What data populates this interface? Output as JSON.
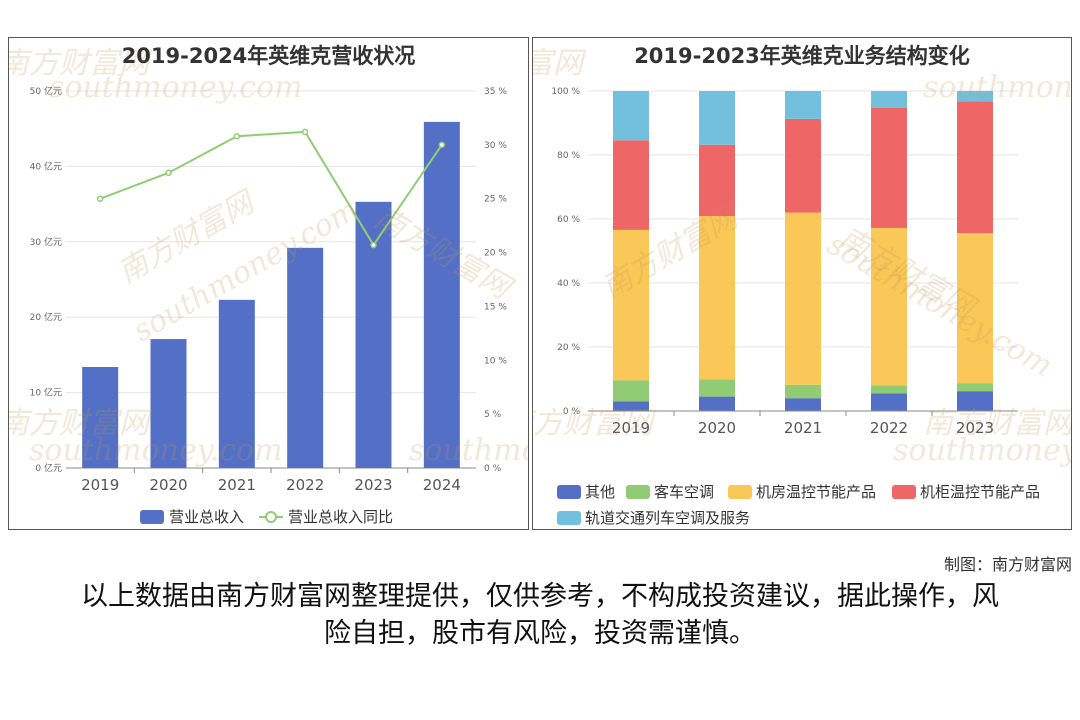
{
  "credit": "制图：南方财富网",
  "disclaimer": "以上数据由南方财富网整理提供，仅供参考，不构成投资建议，据此操作，风险自担，股市有风险，投资需谨慎。",
  "watermark": {
    "cn": "南方财富网",
    "en": "southmoney.com"
  },
  "chart_data": [
    {
      "type": "bar",
      "title": "2019-2024年英维克营收状况",
      "categories": [
        "2019",
        "2020",
        "2021",
        "2022",
        "2023",
        "2024"
      ],
      "series": [
        {
          "name": "营业总收入",
          "type": "bar",
          "axis": "left",
          "color": "#5470c6",
          "values": [
            13.4,
            17.1,
            22.3,
            29.2,
            35.3,
            45.9
          ]
        },
        {
          "name": "营业总收入同比",
          "type": "line",
          "axis": "right",
          "color": "#91cc75",
          "values": [
            25.0,
            27.4,
            30.8,
            31.2,
            20.7,
            30.0
          ]
        }
      ],
      "left_axis": {
        "ylim": [
          0,
          50
        ],
        "ticks": [
          "0 亿元",
          "10 亿元",
          "20 亿元",
          "30 亿元",
          "40 亿元",
          "50 亿元"
        ]
      },
      "right_axis": {
        "ylim": [
          0,
          35
        ],
        "ticks": [
          "0 %",
          "5 %",
          "10 %",
          "15 %",
          "20 %",
          "25 %",
          "30 %",
          "35 %"
        ]
      },
      "grid": true,
      "legend": "bottom"
    },
    {
      "type": "bar",
      "stacked": true,
      "title": "2019-2023年英维克业务结构变化",
      "categories": [
        "2019",
        "2020",
        "2021",
        "2022",
        "2023"
      ],
      "series": [
        {
          "name": "其他",
          "color": "#5470c6",
          "values": [
            3.0,
            4.5,
            4.0,
            5.5,
            6.2
          ]
        },
        {
          "name": "客车空调",
          "color": "#91cc75",
          "values": [
            6.6,
            5.4,
            4.2,
            2.5,
            2.5
          ]
        },
        {
          "name": "机房温控节能产品",
          "color": "#fac858",
          "values": [
            47.0,
            51.0,
            53.8,
            49.2,
            46.9
          ]
        },
        {
          "name": "机柜温控节能产品",
          "color": "#ee6666",
          "values": [
            28.0,
            22.3,
            29.3,
            37.6,
            41.2
          ]
        },
        {
          "name": "轨道交通列车空调及服务",
          "color": "#73c0de",
          "values": [
            15.4,
            16.8,
            8.7,
            5.2,
            3.2
          ]
        }
      ],
      "yaxis": {
        "ylim": [
          0,
          100
        ],
        "ticks": [
          "0 %",
          "20 %",
          "40 %",
          "60 %",
          "80 %",
          "100 %"
        ]
      },
      "grid": true,
      "legend": "bottom"
    }
  ]
}
